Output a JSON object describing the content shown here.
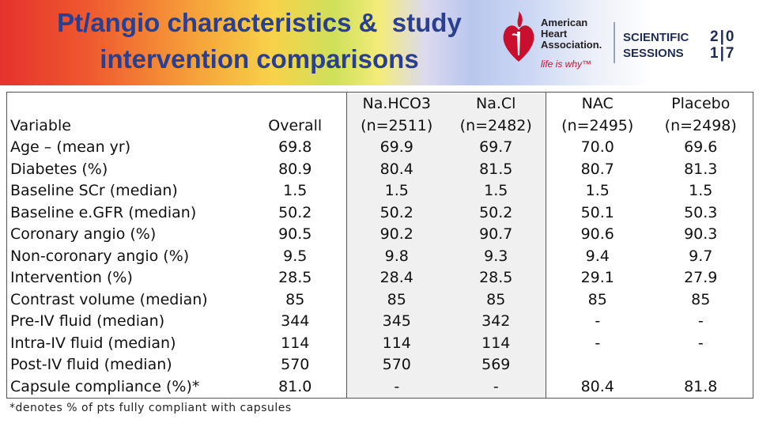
{
  "header": {
    "title_line1": "Pt/angio characteristics &  study",
    "title_line2": "intervention comparisons",
    "aha_name": "American\nHeart\nAssociation.",
    "aha_tagline": "life is why™",
    "sessions_line1": "SCIENTIFIC",
    "sessions_line2": "SESSIONS",
    "sessions_year_top": "2|0",
    "sessions_year_bottom": "1|7",
    "colors": {
      "title": "#2b3f8f",
      "aha_red": "#c8102e"
    }
  },
  "table": {
    "columns": {
      "variable": "Variable",
      "overall": "Overall",
      "nahco3": "Na.HCO3",
      "nahco3_n": "(n=2511)",
      "nacl": "Na.Cl",
      "nacl_n": "(n=2482)",
      "nac": "NAC",
      "nac_n": "(n=2495)",
      "placebo": "Placebo",
      "placebo_n": "(n=2498)"
    },
    "rows": [
      {
        "label": "Age – (mean yr)",
        "overall": "69.8",
        "nahco3": "69.9",
        "nacl": "69.7",
        "nac": "70.0",
        "placebo": "69.6"
      },
      {
        "label": "Diabetes (%)",
        "overall": "80.9",
        "nahco3": "80.4",
        "nacl": "81.5",
        "nac": "80.7",
        "placebo": "81.3"
      },
      {
        "label": "Baseline SCr (median)",
        "overall": "1.5",
        "nahco3": "1.5",
        "nacl": "1.5",
        "nac": "1.5",
        "placebo": "1.5"
      },
      {
        "label": "Baseline e.GFR (median)",
        "overall": "50.2",
        "nahco3": "50.2",
        "nacl": "50.2",
        "nac": "50.1",
        "placebo": "50.3"
      },
      {
        "label": "Coronary angio (%)",
        "overall": "90.5",
        "nahco3": "90.2",
        "nacl": "90.7",
        "nac": "90.6",
        "placebo": "90.3"
      },
      {
        "label": "Non-coronary angio (%)",
        "overall": "9.5",
        "nahco3": "9.8",
        "nacl": "9.3",
        "nac": "9.4",
        "placebo": "9.7"
      },
      {
        "label": "Intervention (%)",
        "overall": "28.5",
        "nahco3": "28.4",
        "nacl": "28.5",
        "nac": "29.1",
        "placebo": "27.9"
      },
      {
        "label": "Contrast volume (median)",
        "overall": "85",
        "nahco3": "85",
        "nacl": "85",
        "nac": "85",
        "placebo": "85"
      },
      {
        "label": "Pre-IV fluid (median)",
        "overall": "344",
        "nahco3": "345",
        "nacl": "342",
        "nac": "-",
        "placebo": "-"
      },
      {
        "label": "Intra-IV fluid (median)",
        "overall": "114",
        "nahco3": "114",
        "nacl": "114",
        "nac": "-",
        "placebo": "-"
      },
      {
        "label": "Post-IV fluid (median)",
        "overall": "570",
        "nahco3": "570",
        "nacl": "569",
        "nac": "",
        "placebo": ""
      },
      {
        "label": "Capsule compliance (%)*",
        "overall": "81.0",
        "nahco3": "-",
        "nacl": "-",
        "nac": "80.4",
        "placebo": "81.8"
      }
    ]
  },
  "footnote": "*denotes % of pts fully compliant with capsules"
}
